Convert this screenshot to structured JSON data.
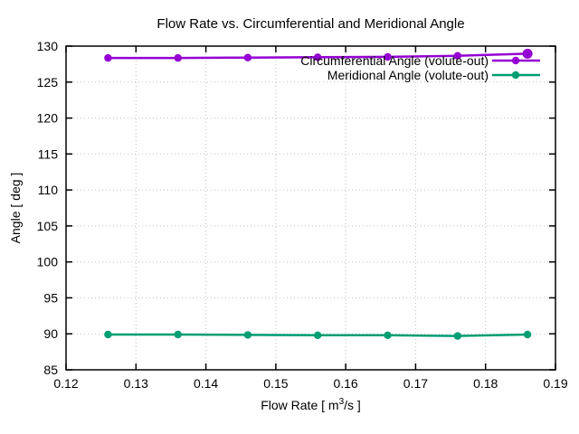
{
  "chart_data": {
    "type": "line",
    "title": "Flow Rate vs. Circumferential and Meridional Angle",
    "xlabel": "Flow Rate [ m^3/s ]",
    "xlabel_parts": {
      "pre": "Flow Rate [ m",
      "sup": "3",
      "post": "/s ]"
    },
    "ylabel": "Angle [ deg ]",
    "xlim": [
      0.12,
      0.19
    ],
    "ylim": [
      85,
      130
    ],
    "xticks": {
      "values": [
        0.12,
        0.13,
        0.14,
        0.15,
        0.16,
        0.17,
        0.18,
        0.19
      ],
      "labels": [
        "0.12",
        "0.13",
        "0.14",
        "0.15",
        "0.16",
        "0.17",
        "0.18",
        "0.19"
      ]
    },
    "yticks": {
      "values": [
        85,
        90,
        95,
        100,
        105,
        110,
        115,
        120,
        125,
        130
      ],
      "labels": [
        "85",
        "90",
        "95",
        "100",
        "105",
        "110",
        "115",
        "120",
        "125",
        "130"
      ]
    },
    "grid": true,
    "legend_position": "top-right",
    "x": [
      0.126,
      0.136,
      0.146,
      0.156,
      0.166,
      0.176,
      0.186
    ],
    "series": [
      {
        "name": "Circumferential Angle (volute-out)",
        "color": "#9400d3",
        "values": [
          128.35,
          128.35,
          128.4,
          128.45,
          128.5,
          128.65,
          128.95
        ]
      },
      {
        "name": "Meridional Angle (volute-out)",
        "color": "#009e73",
        "values": [
          89.9,
          89.9,
          89.85,
          89.8,
          89.8,
          89.7,
          89.9
        ]
      }
    ],
    "colors": {
      "background": "#ffffff",
      "grid": "#bfbfbf",
      "axis": "#000000",
      "text": "#000000"
    }
  }
}
